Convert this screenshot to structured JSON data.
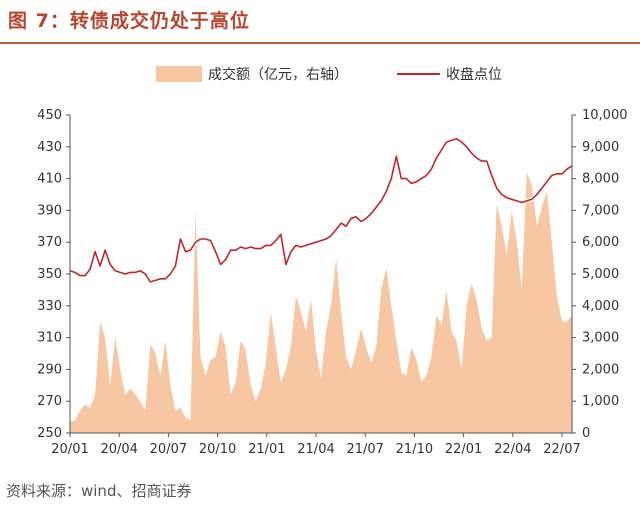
{
  "figure": {
    "title": "图 7：转债成交仍处于高位",
    "source": "资料来源：wind、招商证券"
  },
  "chart_data": {
    "type": "line+area",
    "x_ticks": [
      "20/01",
      "20/04",
      "20/07",
      "20/10",
      "21/01",
      "21/04",
      "21/07",
      "21/10",
      "22/01",
      "22/04",
      "22/07"
    ],
    "y_left": {
      "min": 250,
      "max": 450,
      "ticks": [
        "250",
        "270",
        "290",
        "310",
        "330",
        "350",
        "370",
        "390",
        "410",
        "430",
        "450"
      ]
    },
    "y_right": {
      "min": 0,
      "max": 10000,
      "ticks": [
        "0",
        "1,000",
        "2,000",
        "3,000",
        "4,000",
        "5,000",
        "6,000",
        "7,000",
        "8,000",
        "9,000",
        "10,000"
      ]
    },
    "legend": {
      "position": "top",
      "area_label": "成交额（亿元，右轴）",
      "line_label": "收盘点位"
    },
    "colors": {
      "area": "#f7c6a3",
      "line": "#c0262d",
      "line_halo": "#ffffff",
      "axis": "#555555"
    },
    "series": [
      {
        "name": "收盘点位",
        "axis": "left",
        "x_time": [
          0,
          0.01,
          0.02,
          0.03,
          0.04,
          0.05,
          0.06,
          0.07,
          0.08,
          0.09,
          0.1,
          0.11,
          0.12,
          0.13,
          0.14,
          0.15,
          0.16,
          0.17,
          0.18,
          0.19,
          0.2,
          0.21,
          0.22,
          0.23,
          0.24,
          0.25,
          0.26,
          0.27,
          0.28,
          0.29,
          0.3,
          0.31,
          0.32,
          0.33,
          0.34,
          0.35,
          0.36,
          0.37,
          0.38,
          0.39,
          0.4,
          0.41,
          0.42,
          0.43,
          0.44,
          0.45,
          0.46,
          0.47,
          0.48,
          0.49,
          0.5,
          0.51,
          0.52,
          0.53,
          0.54,
          0.55,
          0.56,
          0.57,
          0.58,
          0.59,
          0.6,
          0.61,
          0.62,
          0.63,
          0.64,
          0.65,
          0.66,
          0.67,
          0.68,
          0.69,
          0.7,
          0.71,
          0.72,
          0.73,
          0.74,
          0.75,
          0.76,
          0.77,
          0.78,
          0.79,
          0.8,
          0.81,
          0.82,
          0.83,
          0.84,
          0.85,
          0.86,
          0.87,
          0.88,
          0.89,
          0.9,
          0.91,
          0.92,
          0.93,
          0.94,
          0.95,
          0.96,
          0.97,
          0.98,
          0.99,
          1.0
        ],
        "values": [
          352,
          351,
          349,
          349,
          353,
          364,
          355,
          365,
          356,
          352,
          351,
          350,
          351,
          351,
          352,
          350,
          345,
          346,
          347,
          347,
          350,
          355,
          372,
          364,
          365,
          370,
          372,
          372,
          371,
          364,
          356,
          359,
          365,
          365,
          367,
          366,
          367,
          366,
          366,
          368,
          368,
          371,
          375,
          356,
          364,
          368,
          367,
          368,
          369,
          370,
          371,
          372,
          374,
          378,
          382,
          380,
          385,
          386,
          383,
          385,
          388,
          392,
          396,
          402,
          410,
          424,
          410,
          410,
          407,
          408,
          410,
          412,
          416,
          423,
          428,
          433,
          434,
          435,
          433,
          430,
          426,
          423,
          421,
          421,
          412,
          404,
          400,
          398,
          397,
          396,
          395,
          396,
          397,
          400,
          404,
          408,
          412,
          413,
          413,
          416,
          418
        ]
      },
      {
        "name": "成交额",
        "axis": "right",
        "x_time": [
          0,
          0.01,
          0.02,
          0.03,
          0.04,
          0.05,
          0.06,
          0.07,
          0.08,
          0.09,
          0.1,
          0.11,
          0.12,
          0.13,
          0.14,
          0.15,
          0.16,
          0.17,
          0.18,
          0.19,
          0.2,
          0.21,
          0.22,
          0.23,
          0.24,
          0.25,
          0.26,
          0.27,
          0.28,
          0.29,
          0.3,
          0.31,
          0.32,
          0.33,
          0.34,
          0.35,
          0.36,
          0.37,
          0.38,
          0.39,
          0.4,
          0.41,
          0.42,
          0.43,
          0.44,
          0.45,
          0.46,
          0.47,
          0.48,
          0.49,
          0.5,
          0.51,
          0.52,
          0.53,
          0.54,
          0.55,
          0.56,
          0.57,
          0.58,
          0.59,
          0.6,
          0.61,
          0.62,
          0.63,
          0.64,
          0.65,
          0.66,
          0.67,
          0.68,
          0.69,
          0.7,
          0.71,
          0.72,
          0.73,
          0.74,
          0.75,
          0.76,
          0.77,
          0.78,
          0.79,
          0.8,
          0.81,
          0.82,
          0.83,
          0.84,
          0.85,
          0.86,
          0.87,
          0.88,
          0.89,
          0.9,
          0.91,
          0.92,
          0.93,
          0.94,
          0.95,
          0.96,
          0.97,
          0.98,
          0.99,
          1.0
        ],
        "values": [
          350,
          400,
          700,
          900,
          800,
          1200,
          3500,
          3000,
          1500,
          3000,
          2000,
          1200,
          1400,
          1200,
          1000,
          700,
          2800,
          2500,
          1800,
          2900,
          1500,
          700,
          800,
          500,
          400,
          7000,
          2400,
          1800,
          2300,
          2400,
          3200,
          2700,
          1200,
          1600,
          2900,
          2600,
          1500,
          1000,
          1400,
          2200,
          3800,
          2700,
          1600,
          2000,
          2700,
          4300,
          3800,
          3200,
          4200,
          2600,
          1700,
          3200,
          4000,
          5500,
          3800,
          2400,
          2000,
          2600,
          3300,
          2700,
          2200,
          2700,
          4500,
          5200,
          4000,
          2900,
          1900,
          1800,
          2700,
          2300,
          1600,
          1800,
          2400,
          3700,
          3400,
          4500,
          3200,
          2900,
          2000,
          4000,
          4700,
          4200,
          3300,
          2900,
          3000,
          7200,
          6500,
          5600,
          7000,
          6000,
          4500,
          8200,
          7800,
          6500,
          7100,
          7600,
          6000,
          4300,
          3500,
          3500,
          3700
        ]
      }
    ]
  }
}
